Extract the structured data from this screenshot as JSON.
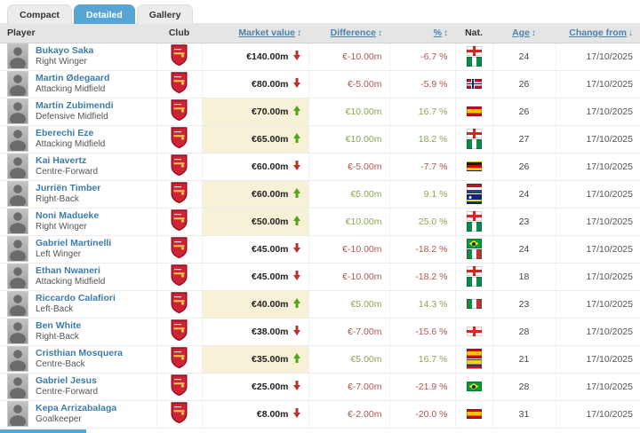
{
  "tabs": [
    {
      "label": "Compact",
      "active": false
    },
    {
      "label": "Detailed",
      "active": true
    },
    {
      "label": "Gallery",
      "active": false
    }
  ],
  "table": {
    "headers": {
      "player": "Player",
      "club": "Club",
      "market_value": "Market value",
      "difference": "Difference",
      "percent": "%",
      "nat": "Nat.",
      "age": "Age",
      "change_from": "Change from"
    },
    "sort_icons": {
      "sortable": "↕",
      "active_desc": "↓"
    },
    "club_icon": "arsenal-crest",
    "rows": [
      {
        "name": "Bukayo Saka",
        "position": "Right Winger",
        "market_value": "€140.00m",
        "trend": "down",
        "difference": "€-10.00m",
        "percent": "-6.7 %",
        "flags": [
          "ENG",
          "NGA"
        ],
        "age": "24",
        "date": "17/10/2025",
        "highlight": false
      },
      {
        "name": "Martin Ødegaard",
        "position": "Attacking Midfield",
        "market_value": "€80.00m",
        "trend": "down",
        "difference": "€-5.00m",
        "percent": "-5.9 %",
        "flags": [
          "NOR"
        ],
        "age": "26",
        "date": "17/10/2025",
        "highlight": false
      },
      {
        "name": "Martín Zubimendi",
        "position": "Defensive Midfield",
        "market_value": "€70.00m",
        "trend": "up",
        "difference": "€10.00m",
        "percent": "16.7 %",
        "flags": [
          "ESP"
        ],
        "age": "26",
        "date": "17/10/2025",
        "highlight": true
      },
      {
        "name": "Eberechi Eze",
        "position": "Attacking Midfield",
        "market_value": "€65.00m",
        "trend": "up",
        "difference": "€10.00m",
        "percent": "18.2 %",
        "flags": [
          "ENG",
          "NGA"
        ],
        "age": "27",
        "date": "17/10/2025",
        "highlight": true
      },
      {
        "name": "Kai Havertz",
        "position": "Centre-Forward",
        "market_value": "€60.00m",
        "trend": "down",
        "difference": "€-5.00m",
        "percent": "-7.7 %",
        "flags": [
          "GER"
        ],
        "age": "26",
        "date": "17/10/2025",
        "highlight": false
      },
      {
        "name": "Jurriën Timber",
        "position": "Right-Back",
        "market_value": "€60.00m",
        "trend": "up",
        "difference": "€5.00m",
        "percent": "9.1 %",
        "flags": [
          "NED",
          "CUW"
        ],
        "age": "24",
        "date": "17/10/2025",
        "highlight": true
      },
      {
        "name": "Noni Madueke",
        "position": "Right Winger",
        "market_value": "€50.00m",
        "trend": "up",
        "difference": "€10.00m",
        "percent": "25.0 %",
        "flags": [
          "ENG",
          "NGA"
        ],
        "age": "23",
        "date": "17/10/2025",
        "highlight": true
      },
      {
        "name": "Gabriel Martinelli",
        "position": "Left Winger",
        "market_value": "€45.00m",
        "trend": "down",
        "difference": "€-10.00m",
        "percent": "-18.2 %",
        "flags": [
          "BRA",
          "ITA"
        ],
        "age": "24",
        "date": "17/10/2025",
        "highlight": false
      },
      {
        "name": "Ethan Nwaneri",
        "position": "Attacking Midfield",
        "market_value": "€45.00m",
        "trend": "down",
        "difference": "€-10.00m",
        "percent": "-18.2 %",
        "flags": [
          "ENG",
          "NGA"
        ],
        "age": "18",
        "date": "17/10/2025",
        "highlight": false
      },
      {
        "name": "Riccardo Calafiori",
        "position": "Left-Back",
        "market_value": "€40.00m",
        "trend": "up",
        "difference": "€5.00m",
        "percent": "14.3 %",
        "flags": [
          "ITA"
        ],
        "age": "23",
        "date": "17/10/2025",
        "highlight": true
      },
      {
        "name": "Ben White",
        "position": "Right-Back",
        "market_value": "€38.00m",
        "trend": "down",
        "difference": "€-7.00m",
        "percent": "-15.6 %",
        "flags": [
          "ENG"
        ],
        "age": "28",
        "date": "17/10/2025",
        "highlight": false
      },
      {
        "name": "Cristhian Mosquera",
        "position": "Centre-Back",
        "market_value": "€35.00m",
        "trend": "up",
        "difference": "€5.00m",
        "percent": "16.7 %",
        "flags": [
          "ESP",
          "COL"
        ],
        "age": "21",
        "date": "17/10/2025",
        "highlight": true
      },
      {
        "name": "Gabriel Jesus",
        "position": "Centre-Forward",
        "market_value": "€25.00m",
        "trend": "down",
        "difference": "€-7.00m",
        "percent": "-21.9 %",
        "flags": [
          "BRA"
        ],
        "age": "28",
        "date": "17/10/2025",
        "highlight": false
      },
      {
        "name": "Kepa Arrizabalaga",
        "position": "Goalkeeper",
        "market_value": "€8.00m",
        "trend": "down",
        "difference": "€-2.00m",
        "percent": "-20.0 %",
        "flags": [
          "ESP"
        ],
        "age": "31",
        "date": "17/10/2025",
        "highlight": false
      }
    ]
  },
  "colors": {
    "active_tab": "#57a5d4",
    "header_link": "#4a83ad",
    "player_link": "#3c7ca8",
    "positive_text": "#8aa64f",
    "negative_text": "#b0544d",
    "arrow_up": "#53a318",
    "arrow_down": "#b7332a",
    "value_highlight_bg": "#f7f1d7"
  }
}
